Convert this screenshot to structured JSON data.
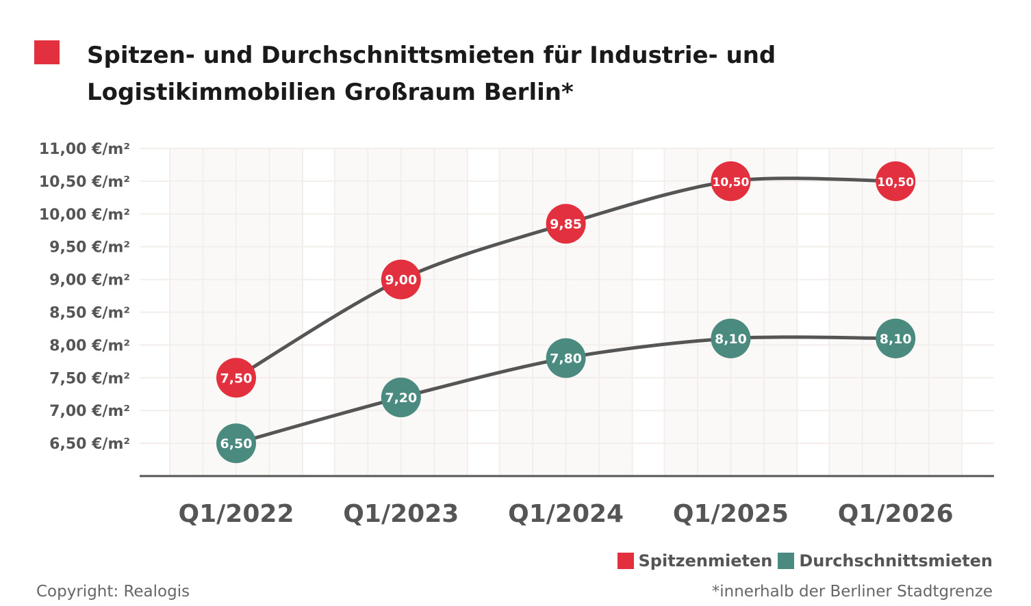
{
  "title": "Spitzen- und Durchschnittsmieten für Industrie- und Logistikimmobilien Großraum Berlin*",
  "chart_data": {
    "type": "line",
    "title": "Spitzen- und Durchschnittsmieten für Industrie- und Logistikimmobilien Großraum Berlin*",
    "categories": [
      "Q1/2022",
      "Q1/2023",
      "Q1/2024",
      "Q1/2025",
      "Q1/2026"
    ],
    "yticks": [
      "6,50 €/m²",
      "7,00 €/m²",
      "7,50 €/m²",
      "8,00 €/m²",
      "8,50 €/m²",
      "9,00 €/m²",
      "9,50 €/m²",
      "10,00 €/m²",
      "10,50 €/m²",
      "11,00 €/m²"
    ],
    "ytick_values": [
      6.5,
      7.0,
      7.5,
      8.0,
      8.5,
      9.0,
      9.5,
      10.0,
      10.5,
      11.0
    ],
    "ylim": [
      6.0,
      11.0
    ],
    "grid": true,
    "legend_position": "bottom-right",
    "series": [
      {
        "name": "Spitzenmieten",
        "color": "#E3303E",
        "values": [
          7.5,
          9.0,
          9.85,
          10.5,
          10.5
        ],
        "labels": [
          "7,50",
          "9,00",
          "9,85",
          "10,50",
          "10,50"
        ]
      },
      {
        "name": "Durchschnittsmieten",
        "color": "#4A8A7F",
        "values": [
          6.5,
          7.2,
          7.8,
          8.1,
          8.1
        ],
        "labels": [
          "6,50",
          "7,20",
          "7,80",
          "8,10",
          "8,10"
        ]
      }
    ],
    "line_color": "#555555"
  },
  "legend": [
    "Spitzenmieten",
    "Durchschnittsmieten"
  ],
  "copyright": "Copyright: Realogis",
  "footnote": "*innerhalb der Berliner Stadtgrenze",
  "colors": {
    "accent": "#E3303E",
    "secondary": "#4A8A7F",
    "text": "#555555"
  }
}
